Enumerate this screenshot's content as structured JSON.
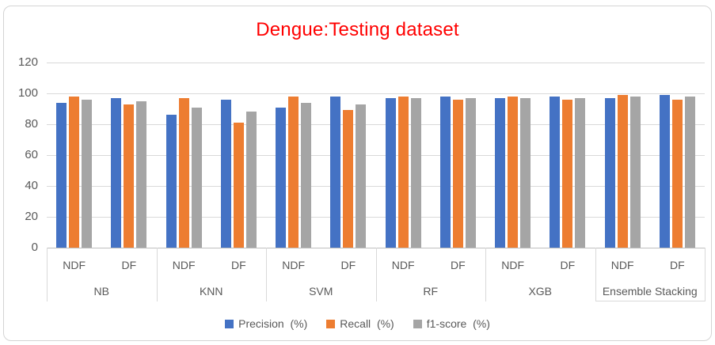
{
  "title": {
    "text": "Dengue:Testing dataset",
    "color": "#FF0000"
  },
  "chart_data": {
    "type": "bar",
    "title": "Dengue:Testing dataset",
    "groups": [
      "NB",
      "KNN",
      "SVM",
      "RF",
      "XGB",
      "Ensemble Stacking"
    ],
    "subgroups": [
      "NDF",
      "DF"
    ],
    "category_order": [
      "NB-NDF",
      "NB-DF",
      "KNN-NDF",
      "KNN-DF",
      "SVM-NDF",
      "SVM-DF",
      "RF-NDF",
      "RF-DF",
      "XGB-NDF",
      "XGB-DF",
      "Ensemble Stacking-NDF",
      "Ensemble Stacking-DF"
    ],
    "series": [
      {
        "name": "Precision  (%)",
        "color": "#4472C4",
        "values": [
          94,
          97,
          86,
          96,
          91,
          98,
          97,
          98,
          97,
          98,
          97,
          99
        ]
      },
      {
        "name": "Recall  (%)",
        "color": "#ED7D31",
        "values": [
          98,
          93,
          97,
          81,
          98,
          89,
          98,
          96,
          98,
          96,
          99,
          96
        ]
      },
      {
        "name": "f1-score  (%)",
        "color": "#A5A5A5",
        "values": [
          96,
          95,
          91,
          88,
          94,
          93,
          97,
          97,
          97,
          97,
          98,
          98
        ]
      }
    ],
    "y_ticks": [
      0,
      20,
      40,
      60,
      80,
      100,
      120
    ],
    "ylim": [
      0,
      120
    ],
    "grid": true,
    "legend_position": "bottom",
    "colors": {
      "grid": "#D9D9D9",
      "axis_line": "#BFBFBF",
      "label": "#595959"
    }
  }
}
